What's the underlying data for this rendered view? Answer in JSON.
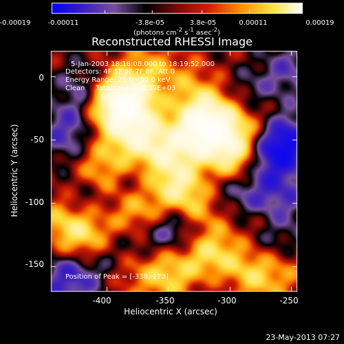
{
  "chart_data": {
    "type": "heatmap",
    "title": "Reconstructed RHESSI Image",
    "xlabel": "Heliocentric X (arcsec)",
    "ylabel": "Heliocentric Y (arcsec)",
    "xlim": [
      -445,
      -245
    ],
    "ylim": [
      -170,
      20
    ],
    "x_ticks": [
      "-400",
      "-350",
      "-300",
      "-250"
    ],
    "y_ticks": [
      "0",
      "-50",
      "-100",
      "-150"
    ],
    "x_tick_values": [
      -400,
      -350,
      -300,
      -250
    ],
    "y_tick_values": [
      0,
      -50,
      -100,
      -150
    ],
    "colorbar": {
      "ticks": [
        "-0.00019",
        "-0.00011",
        "-3.8e-05",
        "3.8e-05",
        "0.00011",
        "0.00019"
      ],
      "tick_values": [
        -0.00019,
        -0.00011,
        -3.8e-05,
        3.8e-05,
        0.00011,
        0.00019
      ],
      "range": [
        -0.00019,
        0.00019
      ],
      "unit_parts": [
        "(photons cm",
        "-2",
        " s",
        "-1",
        " asec",
        "-2",
        ")"
      ],
      "colormap": [
        "#0000ff",
        "#3c1fbf",
        "#78509c",
        "#000000",
        "#7a0a0a",
        "#d21e00",
        "#ff8c00",
        "#ffe040",
        "#ffffff"
      ]
    },
    "annotations": {
      "time": "5-Jan-2003 18:16:08.000 to 18:19:52.000",
      "detectors": "Detectors: 4F 5F 6F 7F 8F, Att 0",
      "energy": "Energy Range: 25.0 - 50.0 keV",
      "clean": "Clean     Total counts: 8.39E+03"
    },
    "peak": "Position of Peak = [-338,-173]",
    "peak_xy": [
      -338,
      -173
    ],
    "grid": false,
    "bright_sources": [
      {
        "x": -397,
        "y": -20,
        "v": 1.0
      },
      {
        "x": -379,
        "y": -22,
        "v": 0.85
      },
      {
        "x": -355,
        "y": -60,
        "v": 0.6
      },
      {
        "x": -327,
        "y": -45,
        "v": 0.85
      },
      {
        "x": -322,
        "y": -30,
        "v": 0.5
      },
      {
        "x": -305,
        "y": -40,
        "v": 0.7
      },
      {
        "x": -298,
        "y": -65,
        "v": 0.8
      },
      {
        "x": -343,
        "y": -88,
        "v": 0.75
      },
      {
        "x": -372,
        "y": -108,
        "v": 0.8
      },
      {
        "x": -325,
        "y": -105,
        "v": 0.6
      },
      {
        "x": -316,
        "y": -140,
        "v": 0.7
      },
      {
        "x": -350,
        "y": -155,
        "v": 0.6
      },
      {
        "x": -377,
        "y": -48,
        "v": 0.65
      },
      {
        "x": -405,
        "y": -75,
        "v": 0.55
      },
      {
        "x": -413,
        "y": -128,
        "v": 0.75
      },
      {
        "x": -432,
        "y": -112,
        "v": 0.65
      },
      {
        "x": -275,
        "y": -35,
        "v": 0.5
      },
      {
        "x": -270,
        "y": -112,
        "v": 0.55
      },
      {
        "x": -262,
        "y": -152,
        "v": 0.45
      },
      {
        "x": -338,
        "y": -10,
        "v": 0.45
      },
      {
        "x": -288,
        "y": -158,
        "v": 0.6
      },
      {
        "x": -382,
        "y": -150,
        "v": 0.35
      },
      {
        "x": -366,
        "y": 5,
        "v": 0.35
      }
    ],
    "dark_sources": [
      {
        "x": -415,
        "y": -12,
        "v": 0.55
      },
      {
        "x": -432,
        "y": -45,
        "v": 0.5
      },
      {
        "x": -420,
        "y": -100,
        "v": 0.55
      },
      {
        "x": -400,
        "y": -140,
        "v": 0.5
      },
      {
        "x": -370,
        "y": -128,
        "v": 0.4
      },
      {
        "x": -350,
        "y": -115,
        "v": 0.45
      },
      {
        "x": -345,
        "y": -20,
        "v": 0.35
      },
      {
        "x": -375,
        "y": -85,
        "v": 0.4
      },
      {
        "x": -310,
        "y": -85,
        "v": 0.4
      },
      {
        "x": -282,
        "y": -20,
        "v": 0.45
      },
      {
        "x": -265,
        "y": -60,
        "v": 0.6
      },
      {
        "x": -255,
        "y": -50,
        "v": 0.7
      },
      {
        "x": -280,
        "y": -95,
        "v": 0.5
      },
      {
        "x": -257,
        "y": -100,
        "v": 0.5
      },
      {
        "x": -265,
        "y": -130,
        "v": 0.55
      },
      {
        "x": -332,
        "y": -120,
        "v": 0.4
      },
      {
        "x": -430,
        "y": -160,
        "v": 0.65
      },
      {
        "x": -303,
        "y": -165,
        "v": 0.35
      },
      {
        "x": -252,
        "y": 5,
        "v": 0.4
      }
    ]
  },
  "timestamp": "23-May-2013 07:27"
}
